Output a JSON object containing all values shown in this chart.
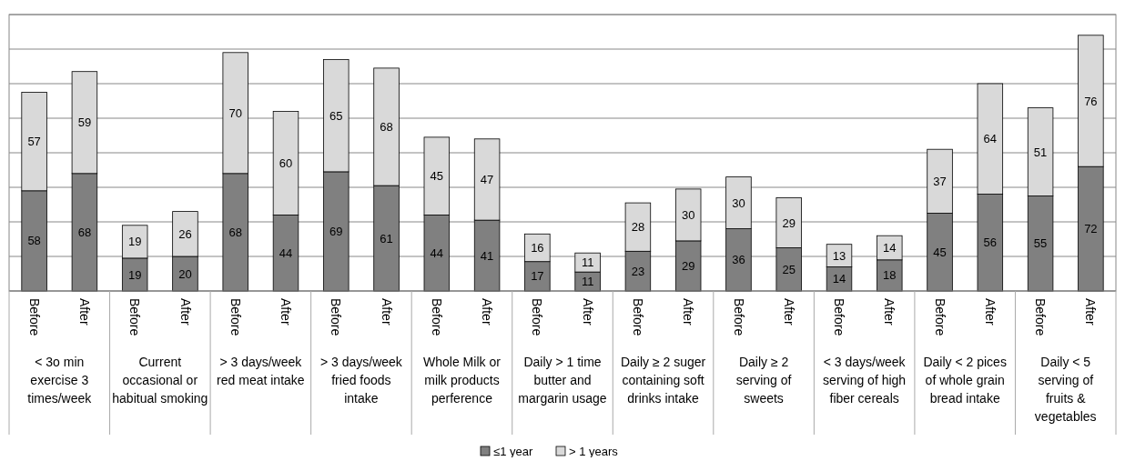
{
  "chart_data": {
    "type": "bar",
    "stacked": true,
    "data_labels": true,
    "grid": "y",
    "legend": "bottom",
    "categories": [
      "Before",
      "After",
      "Before",
      "After",
      "Before",
      "After",
      "Before",
      "After",
      "Before",
      "After",
      "Before",
      "After",
      "Before",
      "After",
      "Before",
      "After",
      "Before",
      "After",
      "Before",
      "After",
      "Before",
      "After"
    ],
    "annotations": [
      "< 3o min exercise 3 times/week",
      "Current occasional or habitual smoking",
      "> 3 days/week red meat intake",
      "> 3 days/week fried foods intake",
      "Whole Milk or milk products perference",
      "Daily > 1 time butter and margarin usage",
      "Daily ≥ 2 suger containing soft drinks intake",
      "Daily ≥ 2 serving of sweets",
      "< 3 days/week serving of high fiber cereals",
      "Daily < 2 pices of whole grain bread intake",
      "Daily < 5 serving of fruits & vegetables"
    ],
    "ylim": [
      0,
      160
    ],
    "yticks": [
      {
        "value": 0,
        "label": null
      },
      {
        "value": 20,
        "label": null
      },
      {
        "value": 40,
        "label": null
      },
      {
        "value": 60,
        "label": null
      },
      {
        "value": 80,
        "label": null
      },
      {
        "value": 100,
        "label": null
      },
      {
        "value": 120,
        "label": null
      },
      {
        "value": 140,
        "label": null
      },
      {
        "value": 160,
        "label": null
      }
    ],
    "series": [
      {
        "name": "≤1 year",
        "color": "#808080",
        "values": [
          58,
          68,
          19,
          20,
          68,
          44,
          69,
          61,
          44,
          41,
          17,
          11,
          23,
          29,
          36,
          25,
          14,
          18,
          45,
          56,
          55,
          72
        ]
      },
      {
        "name": "> 1 years",
        "color": "#d9d9d9",
        "values": [
          57,
          59,
          19,
          26,
          70,
          60,
          65,
          68,
          45,
          47,
          16,
          11,
          28,
          30,
          30,
          29,
          13,
          14,
          37,
          64,
          51,
          76
        ]
      }
    ]
  }
}
